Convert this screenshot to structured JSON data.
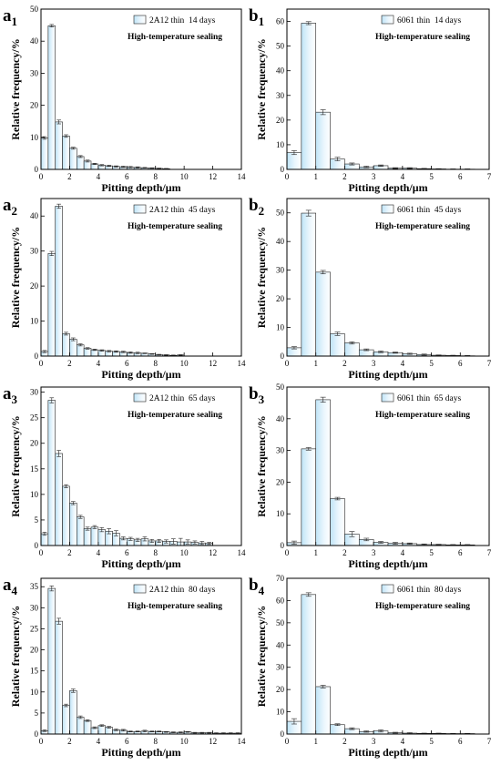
{
  "figure": {
    "panels": [
      {
        "id": "a1",
        "letter": "a",
        "subscript": "1",
        "legend_label": "2A12 thin  14 days",
        "annotation": "High-temperature sealing",
        "chart_data": {
          "type": "bar",
          "x": [
            0.25,
            0.75,
            1.25,
            1.75,
            2.25,
            2.75,
            3.25,
            3.75,
            4.25,
            4.75,
            5.25,
            5.75,
            6.25,
            6.75,
            7.25,
            7.75,
            8.25,
            8.75
          ],
          "values": [
            9.8,
            44.8,
            14.8,
            10.4,
            6.6,
            4.0,
            2.6,
            1.7,
            1.3,
            1.1,
            0.9,
            0.8,
            0.7,
            0.6,
            0.5,
            0.4,
            0.3,
            0.2
          ],
          "errors": [
            0.4,
            0.4,
            0.6,
            0.4,
            0.3,
            0.3,
            0.3,
            0.2,
            0.2,
            0.2,
            0.2,
            0.2,
            0.2,
            0.2,
            0.1,
            0.1,
            0.1,
            0.1
          ],
          "bar_width": 0.5,
          "xlim": [
            0,
            14
          ],
          "ylim": [
            0,
            50
          ],
          "xticks": [
            0,
            2,
            4,
            6,
            8,
            10,
            12,
            14
          ],
          "yticks": [
            0,
            10,
            20,
            30,
            40,
            50
          ],
          "xlabel": "Pitting depth/μm",
          "ylabel": "Relative frequency/%",
          "legend_position": "top-right",
          "grid": false
        }
      },
      {
        "id": "b1",
        "letter": "b",
        "subscript": "1",
        "legend_label": "6061 thin  14 days",
        "annotation": "High-temperature sealing",
        "chart_data": {
          "type": "bar",
          "x": [
            0.25,
            0.75,
            1.25,
            1.75,
            2.25,
            2.75,
            3.25,
            3.75,
            4.25,
            4.75,
            5.25,
            5.75,
            6.25
          ],
          "values": [
            6.8,
            59.3,
            23.2,
            4.2,
            2.2,
            1.0,
            1.5,
            0.5,
            0.5,
            0.3,
            0.2,
            0.1,
            0.1
          ],
          "errors": [
            0.8,
            0.6,
            1.0,
            0.7,
            0.4,
            0.3,
            0.3,
            0.2,
            0.2,
            0.1,
            0.1,
            0.1,
            0.1
          ],
          "bar_width": 0.5,
          "xlim": [
            0,
            7
          ],
          "ylim": [
            0,
            65
          ],
          "xticks": [
            0,
            1,
            2,
            3,
            4,
            5,
            6,
            7
          ],
          "yticks": [
            0,
            10,
            20,
            30,
            40,
            50,
            60
          ],
          "xlabel": "Pitting depth/μm",
          "ylabel": "Relative frequency/%",
          "legend_position": "top-right",
          "grid": false
        }
      },
      {
        "id": "a2",
        "letter": "a",
        "subscript": "2",
        "legend_label": "2A12 thin  45 days",
        "annotation": "High-temperature sealing",
        "chart_data": {
          "type": "bar",
          "x": [
            0.25,
            0.75,
            1.25,
            1.75,
            2.25,
            2.75,
            3.25,
            3.75,
            4.25,
            4.75,
            5.25,
            5.75,
            6.25,
            6.75,
            7.25,
            7.75,
            8.25,
            8.75,
            9.25,
            9.75
          ],
          "values": [
            1.3,
            29.3,
            42.8,
            6.4,
            4.8,
            3.2,
            2.2,
            1.8,
            1.6,
            1.4,
            1.3,
            1.2,
            1.0,
            0.9,
            0.8,
            0.6,
            0.4,
            0.3,
            0.2,
            0.3
          ],
          "errors": [
            0.3,
            0.6,
            0.6,
            0.4,
            0.4,
            0.3,
            0.2,
            0.2,
            0.2,
            0.2,
            0.2,
            0.2,
            0.2,
            0.2,
            0.1,
            0.1,
            0.1,
            0.1,
            0.1,
            0.1
          ],
          "bar_width": 0.5,
          "xlim": [
            0,
            14
          ],
          "ylim": [
            0,
            45
          ],
          "xticks": [
            0,
            2,
            4,
            6,
            8,
            10,
            12,
            14
          ],
          "yticks": [
            0,
            10,
            20,
            30,
            40
          ],
          "xlabel": "Pitting depth/μm",
          "ylabel": "Relative frequency/%",
          "legend_position": "top-right",
          "grid": false
        }
      },
      {
        "id": "b2",
        "letter": "b",
        "subscript": "2",
        "legend_label": "6061 thin  45 days",
        "annotation": "High-temperature sealing",
        "chart_data": {
          "type": "bar",
          "x": [
            0.25,
            0.75,
            1.25,
            1.75,
            2.25,
            2.75,
            3.25,
            3.75,
            4.25,
            4.75,
            5.25,
            5.75,
            6.25
          ],
          "values": [
            2.9,
            49.9,
            29.3,
            7.8,
            4.6,
            2.2,
            1.5,
            1.2,
            0.8,
            0.5,
            0.3,
            0.2,
            0.1
          ],
          "errors": [
            0.4,
            1.0,
            0.6,
            0.6,
            0.4,
            0.3,
            0.3,
            0.2,
            0.2,
            0.2,
            0.1,
            0.1,
            0.1
          ],
          "bar_width": 0.5,
          "xlim": [
            0,
            7
          ],
          "ylim": [
            0,
            55
          ],
          "xticks": [
            0,
            1,
            2,
            3,
            4,
            5,
            6,
            7
          ],
          "yticks": [
            0,
            10,
            20,
            30,
            40,
            50
          ],
          "xlabel": "Pitting depth/μm",
          "ylabel": "Relative frequency/%",
          "legend_position": "top-right",
          "grid": false
        }
      },
      {
        "id": "a3",
        "letter": "a",
        "subscript": "3",
        "legend_label": "2A12 thin  65 days",
        "annotation": "High-temperature sealing",
        "chart_data": {
          "type": "bar",
          "x": [
            0.25,
            0.75,
            1.25,
            1.75,
            2.25,
            2.75,
            3.25,
            3.75,
            4.25,
            4.75,
            5.25,
            5.75,
            6.25,
            6.75,
            7.25,
            7.75,
            8.25,
            8.75,
            9.25,
            9.75,
            10.25,
            10.75,
            11.25,
            11.75
          ],
          "values": [
            2.3,
            28.4,
            18.0,
            11.6,
            8.3,
            5.6,
            3.3,
            3.6,
            3.1,
            2.8,
            2.4,
            1.4,
            1.3,
            1.1,
            1.3,
            0.9,
            0.9,
            0.8,
            0.8,
            0.7,
            0.7,
            0.6,
            0.5,
            0.4
          ],
          "errors": [
            0.3,
            0.5,
            0.6,
            0.3,
            0.3,
            0.3,
            0.3,
            0.3,
            0.4,
            0.5,
            0.5,
            0.3,
            0.3,
            0.3,
            0.4,
            0.3,
            0.3,
            0.3,
            0.5,
            0.7,
            0.4,
            0.3,
            0.3,
            0.2
          ],
          "bar_width": 0.5,
          "xlim": [
            0,
            14
          ],
          "ylim": [
            0,
            31
          ],
          "xticks": [
            0,
            2,
            4,
            6,
            8,
            10,
            12,
            14
          ],
          "yticks": [
            0,
            5,
            10,
            15,
            20,
            25,
            30
          ],
          "xlabel": "Pitting depth/μm",
          "ylabel": "Relative frequency/%",
          "legend_position": "top-right",
          "grid": false
        }
      },
      {
        "id": "b3",
        "letter": "b",
        "subscript": "3",
        "legend_label": "6061 thin  65 days",
        "annotation": "High-temperature sealing",
        "chart_data": {
          "type": "bar",
          "x": [
            0.25,
            0.75,
            1.25,
            1.75,
            2.25,
            2.75,
            3.25,
            3.75,
            4.25,
            4.75,
            5.25,
            5.75,
            6.25
          ],
          "values": [
            0.9,
            30.5,
            46.0,
            14.8,
            3.6,
            1.9,
            1.0,
            0.7,
            0.6,
            0.3,
            0.3,
            0.2,
            0.2
          ],
          "errors": [
            0.5,
            0.4,
            0.8,
            0.4,
            0.8,
            0.4,
            0.3,
            0.3,
            0.2,
            0.2,
            0.1,
            0.1,
            0.1
          ],
          "bar_width": 0.5,
          "xlim": [
            0,
            7
          ],
          "ylim": [
            0,
            50
          ],
          "xticks": [
            0,
            1,
            2,
            3,
            4,
            5,
            6,
            7
          ],
          "yticks": [
            0,
            10,
            20,
            30,
            40,
            50
          ],
          "xlabel": "Pitting depth/μm",
          "ylabel": "Relative frequency/%",
          "legend_position": "top-right",
          "grid": false
        }
      },
      {
        "id": "a4",
        "letter": "a",
        "subscript": "4",
        "legend_label": "2A12 thin  80 days",
        "annotation": "High-temperature sealing",
        "chart_data": {
          "type": "bar",
          "x": [
            0.25,
            0.75,
            1.25,
            1.75,
            2.25,
            2.75,
            3.25,
            3.75,
            4.25,
            4.75,
            5.25,
            5.75,
            6.25,
            6.75,
            7.25,
            7.75,
            8.25,
            8.75,
            9.25,
            9.75,
            10.25,
            10.75,
            11.25,
            11.75,
            12.25,
            12.75,
            13.25,
            13.75
          ],
          "values": [
            0.8,
            34.6,
            26.8,
            6.8,
            10.3,
            4.0,
            3.2,
            1.5,
            2.0,
            1.6,
            1.0,
            0.9,
            0.6,
            0.6,
            0.7,
            0.6,
            0.6,
            0.5,
            0.4,
            0.4,
            0.5,
            0.3,
            0.3,
            0.3,
            0.2,
            0.2,
            0.2,
            0.2
          ],
          "errors": [
            0.2,
            0.6,
            0.7,
            0.3,
            0.4,
            0.3,
            0.2,
            0.2,
            0.2,
            0.2,
            0.2,
            0.2,
            0.1,
            0.1,
            0.2,
            0.1,
            0.1,
            0.1,
            0.1,
            0.1,
            0.1,
            0.1,
            0.1,
            0.1,
            0.1,
            0.1,
            0.1,
            0.1
          ],
          "bar_width": 0.5,
          "xlim": [
            0,
            14
          ],
          "ylim": [
            0,
            37
          ],
          "xticks": [
            0,
            2,
            4,
            6,
            8,
            10,
            12,
            14
          ],
          "yticks": [
            0,
            5,
            10,
            15,
            20,
            25,
            30,
            35
          ],
          "xlabel": "Pitting depth/μm",
          "ylabel": "Relative frequency/%",
          "legend_position": "top-right",
          "grid": false
        }
      },
      {
        "id": "b4",
        "letter": "b",
        "subscript": "4",
        "legend_label": "6061 thin  80 days",
        "annotation": "High-temperature sealing",
        "chart_data": {
          "type": "bar",
          "x": [
            0.25,
            0.75,
            1.25,
            1.75,
            2.25,
            2.75,
            3.25,
            3.75,
            4.25,
            4.75,
            5.25,
            5.75,
            6.25
          ],
          "values": [
            5.7,
            62.7,
            21.3,
            4.2,
            2.4,
            1.1,
            1.4,
            0.6,
            0.4,
            0.3,
            0.3,
            0.2,
            0.2
          ],
          "errors": [
            1.2,
            0.8,
            0.6,
            0.4,
            0.4,
            0.3,
            0.5,
            0.2,
            0.2,
            0.1,
            0.1,
            0.1,
            0.1
          ],
          "bar_width": 0.5,
          "xlim": [
            0,
            7
          ],
          "ylim": [
            0,
            70
          ],
          "xticks": [
            0,
            1,
            2,
            3,
            4,
            5,
            6,
            7
          ],
          "yticks": [
            0,
            10,
            20,
            30,
            40,
            50,
            60,
            70
          ],
          "xlabel": "Pitting depth/μm",
          "ylabel": "Relative frequency/%",
          "legend_position": "top-right",
          "grid": false
        }
      }
    ]
  }
}
